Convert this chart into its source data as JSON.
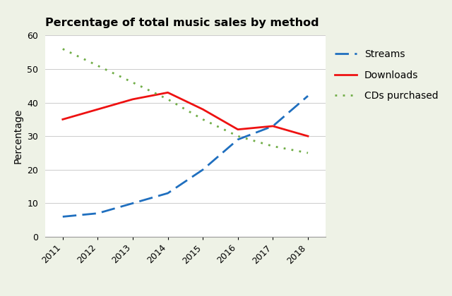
{
  "title": "Percentage of total music sales by method",
  "ylabel": "Percentage",
  "years": [
    2011,
    2012,
    2013,
    2014,
    2015,
    2016,
    2017,
    2018
  ],
  "streams": [
    6,
    7,
    10,
    13,
    20,
    29,
    33,
    42
  ],
  "downloads": [
    35,
    38,
    41,
    43,
    38,
    32,
    33,
    30
  ],
  "cds": [
    56,
    51,
    46,
    41,
    35,
    30,
    27,
    25
  ],
  "streams_color": "#1F6FBF",
  "downloads_color": "#EE1111",
  "cds_color": "#70AD47",
  "background_color": "#eef2e6",
  "plot_bg_color": "#ffffff",
  "ylim": [
    0,
    60
  ],
  "yticks": [
    0,
    10,
    20,
    30,
    40,
    50,
    60
  ],
  "legend_labels": [
    "Streams",
    "Downloads",
    "CDs purchased"
  ],
  "title_fontsize": 11.5,
  "ylabel_fontsize": 10,
  "tick_fontsize": 9,
  "legend_fontsize": 10
}
